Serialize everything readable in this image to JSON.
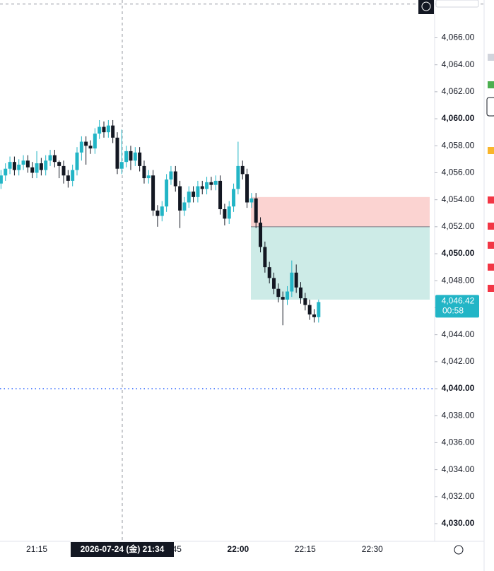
{
  "chart_data": {
    "type": "candlestick",
    "categories": [
      null,
      null,
      null,
      null,
      null,
      null,
      null,
      null,
      "21:15",
      null,
      null,
      null,
      null,
      null,
      null,
      null,
      null,
      null,
      null,
      null,
      null,
      null,
      null,
      null,
      null,
      null,
      null,
      null,
      null,
      null,
      null,
      null,
      null,
      null,
      null,
      null,
      null,
      null,
      "21:45",
      null,
      null,
      null,
      null,
      null,
      null,
      null,
      null,
      null,
      null,
      null,
      null,
      null,
      null,
      "22:00",
      null,
      null,
      null,
      null,
      null,
      null,
      null,
      null,
      null,
      null,
      null,
      null,
      null,
      null,
      "22:15",
      null,
      null,
      null,
      null,
      null,
      null,
      null,
      null,
      null,
      null,
      null,
      null,
      null,
      null,
      "22:30"
    ],
    "open": [
      4055.2,
      4055.8,
      4056.3,
      4056.8,
      4056.2,
      4056.6,
      4056.9,
      4056.4,
      4056.0,
      4056.7,
      4056.2,
      4056.9,
      4057.3,
      4056.8,
      4056.5,
      4055.8,
      4055.4,
      4056.2,
      4057.5,
      4058.3,
      4058.0,
      4057.8,
      4058.9,
      4059.4,
      4059.0,
      4059.5,
      4058.6,
      4056.3,
      4056.8,
      4057.6,
      4056.9,
      4057.5,
      4056.5,
      4055.6,
      4055.8,
      4053.2,
      4052.8,
      4053.5,
      4055.5,
      4056.1,
      4055.0,
      4053.2,
      4053.8,
      4054.6,
      4054.2,
      4055.0,
      4054.8,
      4055.3,
      4055.1,
      4055.4,
      4053.3,
      4052.6,
      4053.5,
      4054.8,
      4056.5,
      4055.9,
      4053.8,
      4054.1,
      4052.3,
      4050.5,
      4049.0,
      4048.2,
      4047.4,
      4046.8,
      4046.6,
      4047.2,
      4048.6,
      4047.5,
      4046.7,
      4046.2,
      4045.5,
      4045.3,
      null,
      null,
      null,
      null,
      null,
      null,
      null,
      null,
      null,
      null,
      null,
      null
    ],
    "high": [
      4056.2,
      4056.7,
      4057.2,
      4057.2,
      4057.0,
      4057.3,
      4057.3,
      4056.8,
      4057.6,
      4057.1,
      4057.3,
      4057.7,
      4057.7,
      4056.9,
      4056.9,
      4056.2,
      4056.6,
      4057.9,
      4058.7,
      4058.7,
      4058.4,
      4059.3,
      4059.9,
      4059.8,
      4059.9,
      4059.9,
      4059.0,
      4059.2,
      4058.0,
      4058.0,
      4057.9,
      4057.9,
      4056.9,
      4056.2,
      4056.2,
      4053.6,
      4053.9,
      4055.9,
      4056.5,
      4056.5,
      4055.4,
      4054.2,
      4055.0,
      4055.0,
      4055.4,
      4055.4,
      4055.7,
      4055.7,
      4055.8,
      4055.8,
      4053.7,
      4053.9,
      4055.2,
      4058.3,
      4056.9,
      4056.3,
      4054.5,
      4054.5,
      4052.7,
      4050.9,
      4049.4,
      4048.6,
      4047.8,
      4047.2,
      4047.6,
      4049.5,
      4049.2,
      4047.9,
      4047.1,
      4046.6,
      4045.9,
      4046.6,
      null,
      null,
      null,
      null,
      null,
      null,
      null,
      null,
      null,
      null,
      null,
      null
    ],
    "low": [
      4054.8,
      4055.4,
      4055.9,
      4055.8,
      4055.8,
      4056.2,
      4056.0,
      4055.6,
      4055.6,
      4055.8,
      4055.8,
      4056.5,
      4056.4,
      4055.6,
      4055.2,
      4054.9,
      4055.0,
      4055.8,
      4056.9,
      4056.6,
      4057.4,
      4057.4,
      4058.5,
      4058.6,
      4058.6,
      4058.2,
      4055.9,
      4055.9,
      4056.4,
      4056.2,
      4056.5,
      4056.1,
      4055.2,
      4055.2,
      4052.8,
      4052.0,
      4052.4,
      4053.1,
      4055.1,
      4054.6,
      4051.9,
      4052.8,
      4053.4,
      4053.8,
      4053.8,
      4054.4,
      4054.4,
      4054.7,
      4054.7,
      4052.9,
      4052.1,
      4052.2,
      4053.1,
      4054.4,
      4055.5,
      4053.4,
      4053.4,
      4051.9,
      4050.1,
      4048.6,
      4047.8,
      4047.0,
      4046.4,
      4044.7,
      4046.2,
      4046.8,
      4047.1,
      4046.3,
      4045.8,
      4045.1,
      4044.9,
      4044.9,
      null,
      null,
      null,
      null,
      null,
      null,
      null,
      null,
      null,
      null,
      null,
      null
    ],
    "close": [
      4055.8,
      4056.3,
      4056.8,
      4056.2,
      4056.6,
      4056.9,
      4056.4,
      4056.0,
      4056.7,
      4056.2,
      4056.9,
      4057.3,
      4056.8,
      4056.5,
      4055.8,
      4055.4,
      4056.2,
      4057.5,
      4058.3,
      4058.0,
      4057.8,
      4058.9,
      4059.4,
      4059.0,
      4059.5,
      4058.6,
      4056.3,
      4056.8,
      4057.6,
      4056.9,
      4057.5,
      4056.5,
      4055.6,
      4055.8,
      4053.2,
      4052.8,
      4053.5,
      4055.5,
      4056.1,
      4055.0,
      4053.2,
      4053.8,
      4054.6,
      4054.2,
      4055.0,
      4054.8,
      4055.3,
      4055.1,
      4055.4,
      4053.3,
      4052.6,
      4053.5,
      4054.8,
      4056.5,
      4055.9,
      4053.8,
      4054.1,
      4052.3,
      4050.5,
      4049.0,
      4048.2,
      4047.4,
      4046.8,
      4046.6,
      4047.2,
      4048.6,
      4047.5,
      4046.7,
      4046.2,
      4045.5,
      4045.3,
      4046.42,
      null,
      null,
      null,
      null,
      null,
      null,
      null,
      null,
      null,
      null,
      null,
      null
    ],
    "up_color": "#22b5c6",
    "down_color": "#131722",
    "ylim": [
      4028.9,
      4068.8
    ],
    "yticks": [
      {
        "value": 4030,
        "label": "4,030.00"
      },
      {
        "value": 4032,
        "label": "4,032.00"
      },
      {
        "value": 4034,
        "label": "4,034.00"
      },
      {
        "value": 4036,
        "label": "4,036.00"
      },
      {
        "value": 4038,
        "label": "4,038.00"
      },
      {
        "value": 4040,
        "label": "4,040.00"
      },
      {
        "value": 4042,
        "label": "4,042.00"
      },
      {
        "value": 4044,
        "label": "4,044.00"
      },
      {
        "value": 4046,
        "label": "4,046.00"
      },
      {
        "value": 4048,
        "label": "4,048.00"
      },
      {
        "value": 4050,
        "label": "4,050.00"
      },
      {
        "value": 4052,
        "label": "4,052.00"
      },
      {
        "value": 4054,
        "label": "4,054.00"
      },
      {
        "value": 4056,
        "label": "4,056.00"
      },
      {
        "value": 4058,
        "label": "4,058.00"
      },
      {
        "value": 4060,
        "label": "4,060.00"
      },
      {
        "value": 4062,
        "label": "4,062.00"
      },
      {
        "value": 4064,
        "label": "4,064.00"
      },
      {
        "value": 4066,
        "label": "4,066.00"
      }
    ],
    "last_price": {
      "value": 4046.42,
      "label": "4,046.42"
    },
    "countdown": "00:58",
    "horizontal_line": {
      "value": 4040,
      "color": "#2962ff"
    },
    "top_line": {
      "value": 4068.5,
      "color": "#9598a1"
    },
    "position": {
      "stop": 4054.2,
      "entry": 4052.0,
      "target": 4046.6,
      "stop_color": "#fbd3d1",
      "target_color": "#cdebe7"
    },
    "crosshair_label": "2026-07-24 (金)  21:34"
  }
}
